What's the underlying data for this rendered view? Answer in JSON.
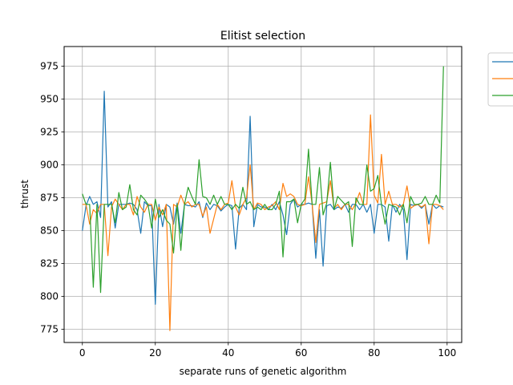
{
  "chart_data": {
    "type": "line",
    "title": "Elitist selection",
    "xlabel": "separate runs of genetic algorithm",
    "ylabel": "thrust",
    "xlim": [
      -5,
      104
    ],
    "ylim": [
      765,
      990
    ],
    "xticks": [
      0,
      20,
      40,
      60,
      80,
      100
    ],
    "yticks": [
      775,
      800,
      825,
      850,
      875,
      900,
      925,
      950,
      975
    ],
    "grid": true,
    "legend": "outside-top-right",
    "series": [
      {
        "name": "",
        "color": "#1f77b4",
        "values": [
          850,
          869,
          876,
          870,
          872,
          860,
          956,
          868,
          872,
          852,
          870,
          870,
          870,
          871,
          870,
          866,
          848,
          872,
          869,
          869,
          794,
          870,
          853,
          870,
          868,
          855,
          871,
          848,
          870,
          869,
          869,
          868,
          872,
          860,
          871,
          866,
          870,
          869,
          865,
          868,
          870,
          869,
          836,
          867,
          870,
          866,
          937,
          853,
          870,
          868,
          868,
          866,
          870,
          866,
          872,
          862,
          847,
          870,
          874,
          868,
          870,
          870,
          871,
          870,
          829,
          866,
          823,
          869,
          870,
          866,
          868,
          867,
          870,
          864,
          870,
          870,
          866,
          870,
          864,
          870,
          848,
          870,
          870,
          868,
          842,
          870,
          864,
          870,
          866,
          828,
          870,
          869,
          870,
          867,
          870,
          855,
          870,
          867,
          869,
          868
        ]
      },
      {
        "name": "",
        "color": "#ff7f0e",
        "values": [
          870,
          870,
          855,
          866,
          863,
          870,
          870,
          831,
          868,
          874,
          870,
          866,
          870,
          870,
          862,
          876,
          868,
          864,
          870,
          870,
          858,
          868,
          862,
          870,
          774,
          870,
          868,
          877,
          870,
          872,
          868,
          870,
          870,
          861,
          868,
          848,
          859,
          870,
          866,
          870,
          871,
          888,
          868,
          862,
          870,
          875,
          900,
          866,
          871,
          870,
          866,
          868,
          869,
          872,
          866,
          886,
          876,
          878,
          876,
          870,
          869,
          870,
          891,
          870,
          841,
          870,
          871,
          872,
          888,
          867,
          870,
          866,
          870,
          870,
          866,
          871,
          879,
          870,
          870,
          938,
          877,
          871,
          908,
          870,
          880,
          870,
          870,
          868,
          870,
          884,
          867,
          869,
          870,
          868,
          870,
          840,
          870,
          870,
          869,
          866
        ]
      },
      {
        "name": "",
        "color": "#2ca02c",
        "values": [
          878,
          870,
          870,
          807,
          870,
          803,
          870,
          870,
          870,
          856,
          879,
          866,
          868,
          885,
          866,
          862,
          877,
          874,
          870,
          852,
          874,
          860,
          866,
          858,
          855,
          833,
          870,
          835,
          870,
          883,
          876,
          870,
          904,
          876,
          875,
          870,
          877,
          870,
          876,
          870,
          870,
          866,
          870,
          867,
          883,
          870,
          872,
          866,
          868,
          866,
          870,
          866,
          866,
          870,
          880,
          830,
          872,
          872,
          874,
          856,
          870,
          874,
          912,
          870,
          870,
          898,
          862,
          871,
          902,
          866,
          876,
          873,
          870,
          872,
          838,
          875,
          870,
          870,
          900,
          880,
          882,
          892,
          870,
          855,
          870,
          869,
          868,
          862,
          870,
          856,
          876,
          870,
          870,
          871,
          876,
          870,
          870,
          877,
          871,
          975
        ]
      }
    ]
  }
}
